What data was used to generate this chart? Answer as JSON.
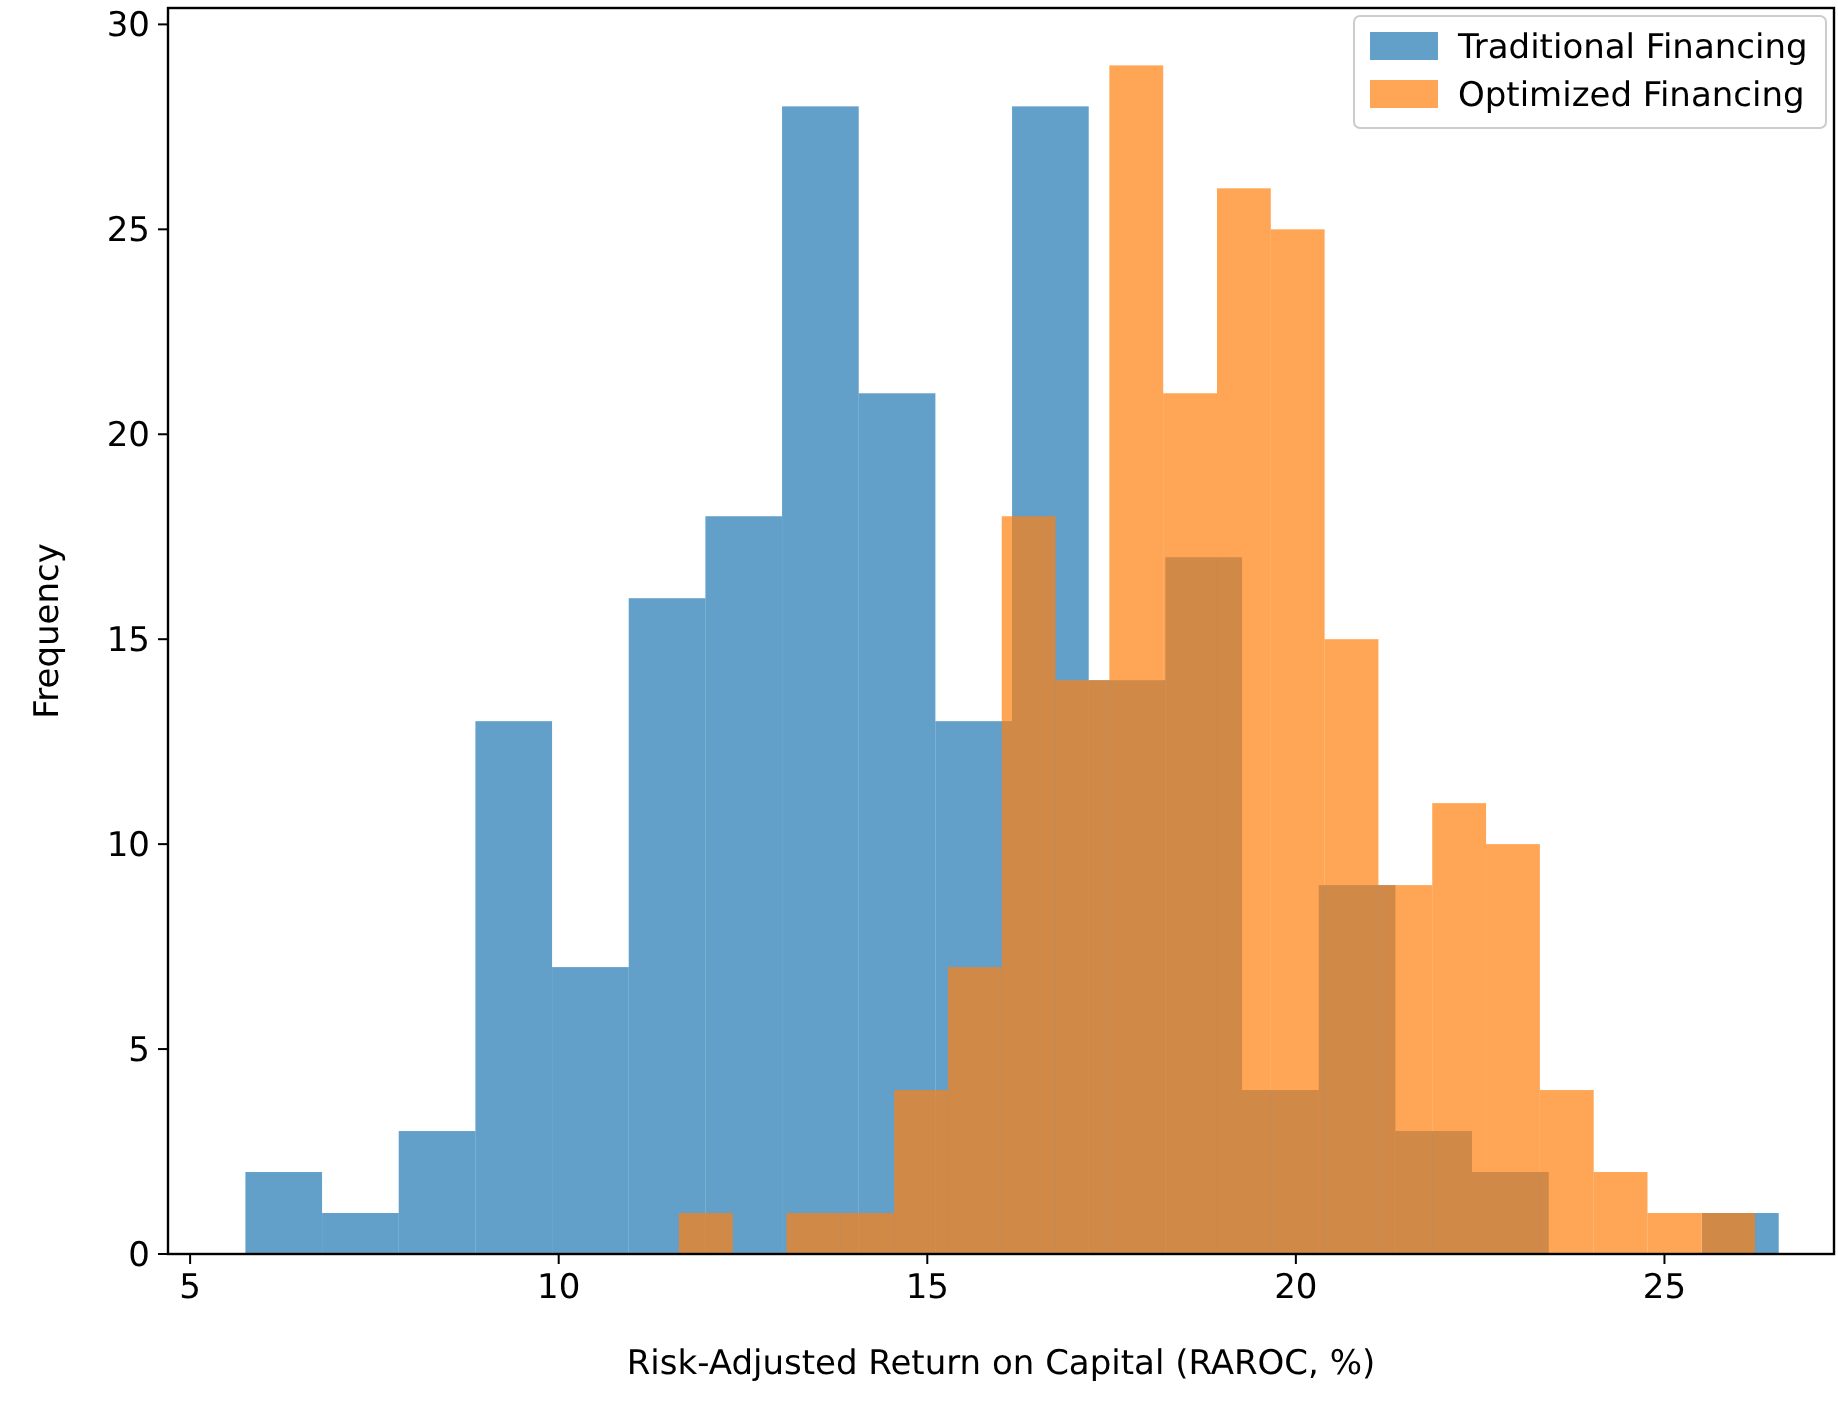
{
  "chart_data": {
    "type": "histogram",
    "xlabel": "Risk-Adjusted Return on Capital (RAROC, %)",
    "ylabel": "Frequency",
    "xlim": [
      4.7,
      27.3
    ],
    "xticks": [
      5,
      10,
      15,
      20,
      25
    ],
    "ylim": [
      0,
      30.4
    ],
    "yticks": [
      0,
      5,
      10,
      15,
      20,
      25,
      30
    ],
    "legend": "top right",
    "bins": [
      5.75,
      6.79,
      7.83,
      8.87,
      9.91,
      10.95,
      11.99,
      13.03,
      14.07,
      15.11,
      16.15,
      17.19,
      18.23,
      19.27,
      20.31,
      21.35,
      22.39,
      23.43,
      24.47,
      25.51,
      26.55
    ],
    "series": [
      {
        "name": "Traditional Financing",
        "color": "#1f77b4",
        "values": [
          2,
          1,
          3,
          13,
          7,
          16,
          18,
          28,
          21,
          13,
          28,
          14,
          17,
          4,
          9,
          3,
          2,
          0,
          0,
          1
        ]
      },
      {
        "name": "Optimized Financing",
        "color": "#ff7f0e",
        "bins": [
          11.63,
          12.36,
          13.09,
          13.82,
          14.55,
          15.28,
          16.01,
          16.74,
          17.47,
          18.2,
          18.93,
          19.66,
          20.39,
          21.12,
          21.85,
          22.58,
          23.31,
          24.04,
          24.77,
          25.5,
          26.23
        ],
        "values": [
          1,
          0,
          1,
          1,
          4,
          7,
          18,
          14,
          29,
          21,
          26,
          25,
          15,
          9,
          11,
          10,
          4,
          2,
          1,
          1
        ]
      }
    ]
  }
}
